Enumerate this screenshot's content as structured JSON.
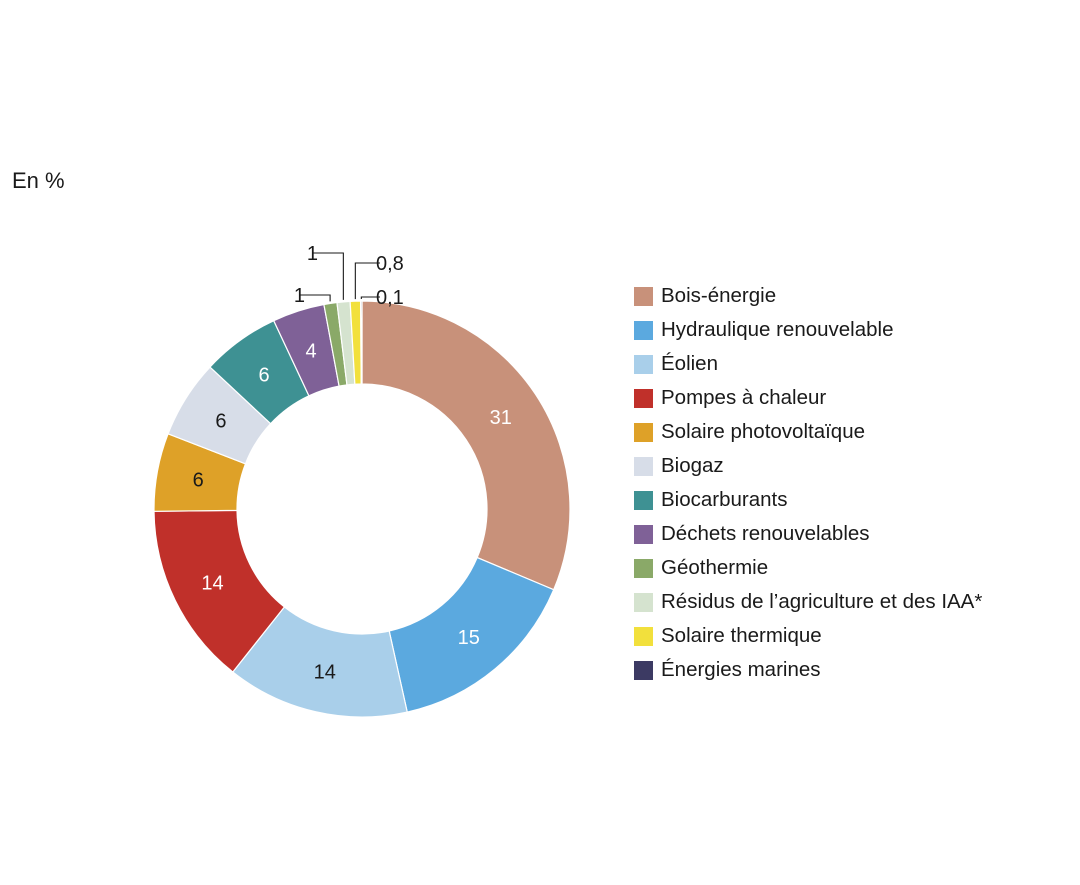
{
  "unit_label": "En %",
  "chart_data": {
    "type": "donut",
    "legend_position": "right",
    "slices": [
      {
        "label": "Bois-énergie",
        "value": 31,
        "display": "31",
        "color": "#c8917a",
        "label_color": "#ffffff"
      },
      {
        "label": "Hydraulique renouvelable",
        "value": 15,
        "display": "15",
        "color": "#5ba9df",
        "label_color": "#ffffff"
      },
      {
        "label": "Éolien",
        "value": 14,
        "display": "14",
        "color": "#a9cfea",
        "label_color": "#1a1a1a"
      },
      {
        "label": "Pompes à chaleur",
        "value": 14,
        "display": "14",
        "color": "#c0302a",
        "label_color": "#ffffff"
      },
      {
        "label": "Solaire photovoltaïque",
        "value": 6,
        "display": "6",
        "color": "#dea128",
        "label_color": "#1a1a1a"
      },
      {
        "label": "Biogaz",
        "value": 6,
        "display": "6",
        "color": "#d7dde8",
        "label_color": "#1a1a1a"
      },
      {
        "label": "Biocarburants",
        "value": 6,
        "display": "6",
        "color": "#3e9193",
        "label_color": "#ffffff"
      },
      {
        "label": "Déchets renouvelables",
        "value": 4,
        "display": "4",
        "color": "#7f6197",
        "label_color": "#ffffff"
      },
      {
        "label": "Géothermie",
        "value": 1,
        "display": "1",
        "color": "#8aa968",
        "label_color": "#1a1a1a"
      },
      {
        "label": "Résidus de l’agriculture et des IAA*",
        "value": 1,
        "display": "1",
        "color": "#d5e3cf",
        "label_color": "#1a1a1a"
      },
      {
        "label": "Solaire thermique",
        "value": 0.8,
        "display": "0,8",
        "color": "#f2e03c",
        "label_color": "#1a1a1a"
      },
      {
        "label": "Énergies marines",
        "value": 0.1,
        "display": "0,1",
        "color": "#3c3a63",
        "label_color": "#1a1a1a"
      }
    ]
  }
}
